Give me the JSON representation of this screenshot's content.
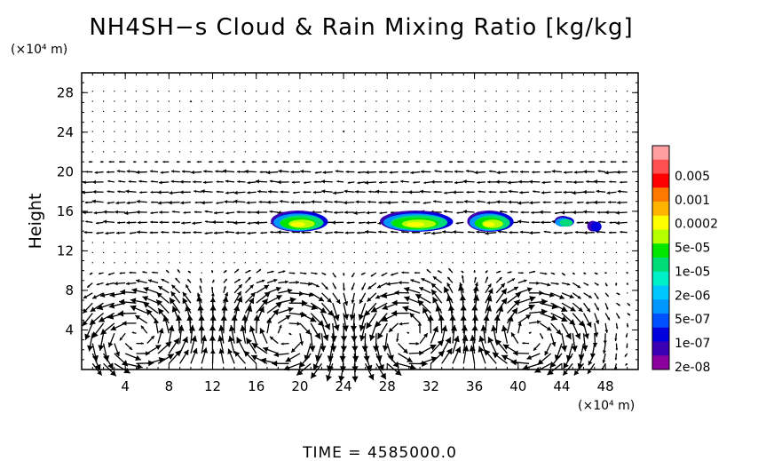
{
  "chart_data": {
    "type": "heatmap",
    "title": "NH4SH−s Cloud & Rain Mixing Ratio [kg/kg]",
    "ylabel": "Height",
    "x_unit": "(×10⁴ m)",
    "y_unit": "(×10⁴ m)",
    "footer": "TIME  =  4585000.0",
    "x_ticks": [
      4,
      8,
      12,
      16,
      20,
      24,
      28,
      32,
      36,
      40,
      44,
      48
    ],
    "y_ticks": [
      4,
      8,
      12,
      16,
      20,
      24,
      28
    ],
    "xlim": [
      0,
      51
    ],
    "ylim": [
      0,
      30
    ],
    "colorbar": {
      "labels": [
        "0.005",
        "0.001",
        "0.0002",
        "5e-05",
        "1e-05",
        "2e-06",
        "5e-07",
        "1e-07",
        "2e-08"
      ],
      "colors": [
        "#ff9f9f",
        "#ff5050",
        "#ff0000",
        "#ff7800",
        "#ffb400",
        "#ffff00",
        "#b4ff00",
        "#00e600",
        "#00dc78",
        "#00f0c8",
        "#00c8ff",
        "#0096ff",
        "#0050ff",
        "#0000dc",
        "#3c00b4",
        "#8c00a0"
      ]
    },
    "cloud_regions": [
      {
        "x_range": [
          17.5,
          22.5
        ],
        "y_center": 15.0
      },
      {
        "x_range": [
          27.5,
          34
        ],
        "y_center": 15.0
      },
      {
        "x_range": [
          35.5,
          39.5
        ],
        "y_center": 15.0
      },
      {
        "x_range": [
          43.5,
          45
        ],
        "y_center": 15.0
      },
      {
        "x_range": [
          46.5,
          47.5
        ],
        "y_center": 14.5
      }
    ],
    "grid": false,
    "legend": "right"
  }
}
